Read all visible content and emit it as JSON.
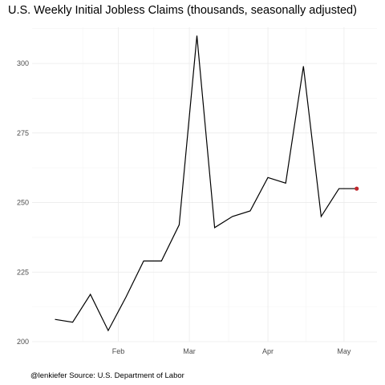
{
  "chart_data": {
    "type": "line",
    "title": "U.S. Weekly Initial Jobless Claims (thousands, seasonally adjusted)",
    "caption": "@lenkiefer Source: U.S. Department of Labor",
    "xlabel": "",
    "ylabel": "",
    "x": [
      "2017-01-07",
      "2017-01-14",
      "2017-01-21",
      "2017-01-28",
      "2017-02-04",
      "2017-02-11",
      "2017-02-18",
      "2017-02-25",
      "2017-03-04",
      "2017-03-11",
      "2017-03-18",
      "2017-03-25",
      "2017-04-01",
      "2017-04-08",
      "2017-04-15",
      "2017-04-22",
      "2017-04-29",
      "2017-05-06"
    ],
    "series": [
      {
        "values": [
          208,
          207,
          217,
          204,
          216,
          229,
          229,
          242,
          310,
          241,
          245,
          247,
          259,
          257,
          299,
          245,
          255,
          255
        ]
      }
    ],
    "highlight_last_point": true,
    "ylim": [
      200,
      313
    ],
    "yticks": [
      200,
      225,
      250,
      275,
      300
    ],
    "xticks": [
      {
        "label": "Feb",
        "date": "2017-02-01"
      },
      {
        "label": "Mar",
        "date": "2017-03-01"
      },
      {
        "label": "Apr",
        "date": "2017-04-01"
      },
      {
        "label": "May",
        "date": "2017-05-01"
      }
    ],
    "xlim": [
      "2016-12-29",
      "2017-05-14"
    ],
    "grid": true,
    "colors": {
      "line": "#000000",
      "last_point": "#c0282d",
      "grid": "#ebebeb"
    }
  }
}
